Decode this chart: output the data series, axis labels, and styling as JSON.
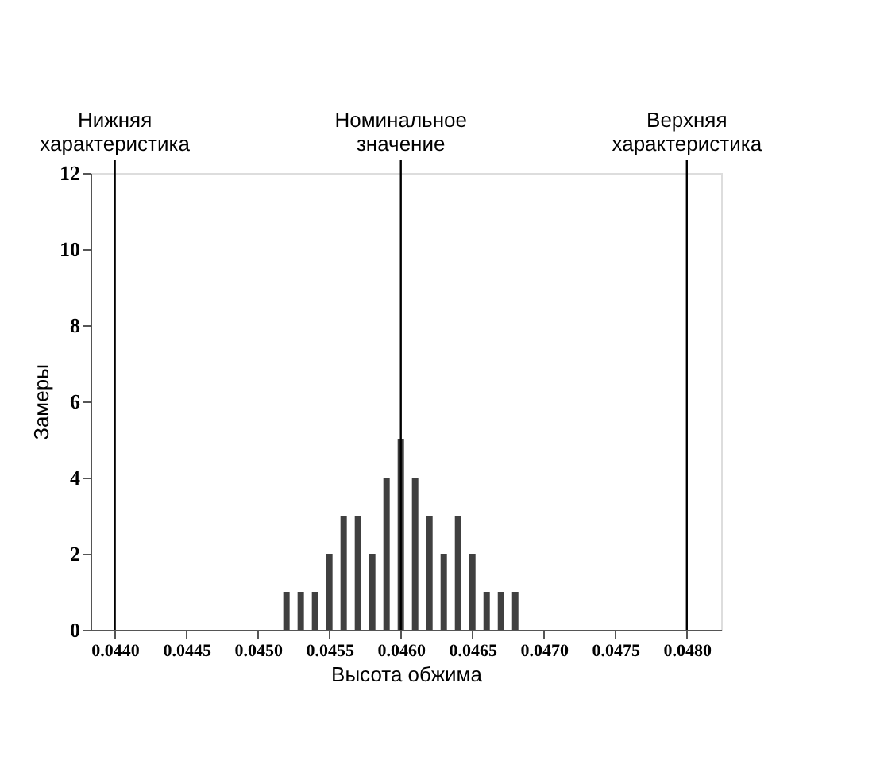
{
  "chart_data": {
    "type": "bar",
    "xlabel": "Высота обжима",
    "ylabel": "Замеры",
    "x": [
      0.0452,
      0.0453,
      0.0454,
      0.0455,
      0.0456,
      0.0457,
      0.0458,
      0.0459,
      0.046,
      0.0461,
      0.0462,
      0.0463,
      0.0464,
      0.0465,
      0.0466,
      0.0467,
      0.0468
    ],
    "values": [
      1,
      1,
      1,
      2,
      3,
      3,
      2,
      4,
      5,
      4,
      3,
      2,
      3,
      2,
      1,
      1,
      1
    ],
    "color": "#404040",
    "xlim": [
      0.04383,
      0.04824
    ],
    "xticks": [
      {
        "value": 0.044,
        "label": "0.0440"
      },
      0.0445,
      {
        "value": 0.045,
        "label": "0.0450"
      },
      0.0455,
      {
        "value": 0.046,
        "label": "0.0460"
      },
      0.0465,
      {
        "value": 0.047,
        "label": "0.0470"
      },
      0.0475,
      {
        "value": 0.048,
        "label": "0.0480"
      }
    ],
    "ylim": [
      0,
      12
    ],
    "yticks": [
      0,
      2,
      4,
      6,
      8,
      10,
      12
    ],
    "ref_lines": [
      {
        "axis": "x",
        "value": 0.044,
        "label": "Нижняя характеристика",
        "color": "#000000"
      },
      {
        "axis": "x",
        "value": 0.046,
        "label": "Номинальное значение",
        "color": "#000000"
      },
      {
        "axis": "x",
        "value": 0.048,
        "label": "Верхняя характеристика",
        "color": "#000000"
      }
    ],
    "grid": false
  }
}
